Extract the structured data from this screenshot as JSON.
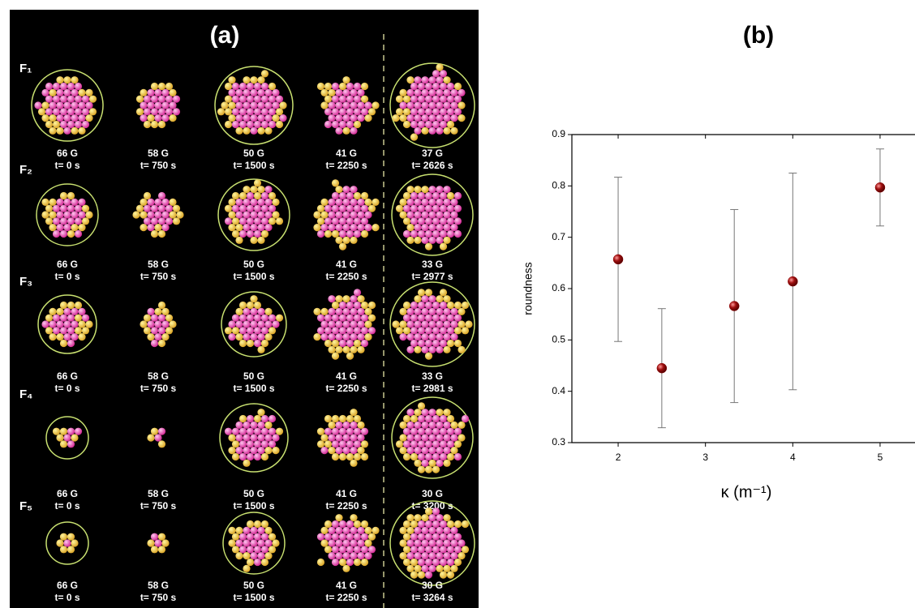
{
  "panel_a": {
    "title": "(a)",
    "rows": [
      {
        "label": "F₁",
        "cells": [
          {
            "field": "66 G",
            "time": "t= 0 s"
          },
          {
            "field": "58 G",
            "time": "t= 750 s"
          },
          {
            "field": "50 G",
            "time": "t= 1500 s"
          },
          {
            "field": "41 G",
            "time": "t= 2250 s"
          },
          {
            "field": "37 G",
            "time": "t= 2626 s"
          }
        ]
      },
      {
        "label": "F₂",
        "cells": [
          {
            "field": "66 G",
            "time": "t= 0 s"
          },
          {
            "field": "58 G",
            "time": "t= 750 s"
          },
          {
            "field": "50 G",
            "time": "t= 1500 s"
          },
          {
            "field": "41 G",
            "time": "t= 2250 s"
          },
          {
            "field": "33 G",
            "time": "t= 2977 s"
          }
        ]
      },
      {
        "label": "F₃",
        "cells": [
          {
            "field": "66 G",
            "time": "t= 0 s"
          },
          {
            "field": "58 G",
            "time": "t= 750 s"
          },
          {
            "field": "50 G",
            "time": "t= 1500 s"
          },
          {
            "field": "41 G",
            "time": "t= 2250 s"
          },
          {
            "field": "33 G",
            "time": "t= 2981 s"
          }
        ]
      },
      {
        "label": "F₄",
        "cells": [
          {
            "field": "66 G",
            "time": "t= 0 s"
          },
          {
            "field": "58 G",
            "time": "t= 750 s"
          },
          {
            "field": "50 G",
            "time": "t= 1500 s"
          },
          {
            "field": "41 G",
            "time": "t= 2250 s"
          },
          {
            "field": "30 G",
            "time": "t= 3200 s"
          }
        ]
      },
      {
        "label": "F₅",
        "cells": [
          {
            "field": "66 G",
            "time": "t= 0 s"
          },
          {
            "field": "58 G",
            "time": "t= 750 s"
          },
          {
            "field": "50 G",
            "time": "t= 1500 s"
          },
          {
            "field": "41 G",
            "time": "t= 2250 s"
          },
          {
            "field": "30 G",
            "time": "t= 3264 s"
          }
        ]
      }
    ]
  },
  "chart_data": {
    "type": "scatter",
    "title": "(b)",
    "x_label": "κ (m⁻¹)",
    "y_label": "roundness",
    "x": [
      2,
      2.5,
      3.33,
      4,
      5
    ],
    "values": [
      0.657,
      0.445,
      0.566,
      0.614,
      0.797
    ],
    "errors": [
      0.16,
      0.116,
      0.188,
      0.211,
      0.075
    ],
    "color": "#8b0000",
    "error_color": "#777777",
    "xlim": [
      1.47,
      5.4
    ],
    "ylim": [
      0.3,
      0.9
    ],
    "xticks": [
      2,
      3,
      4,
      5
    ],
    "yticks": [
      0.3,
      0.4,
      0.5,
      0.6,
      0.7,
      0.8,
      0.9
    ]
  }
}
